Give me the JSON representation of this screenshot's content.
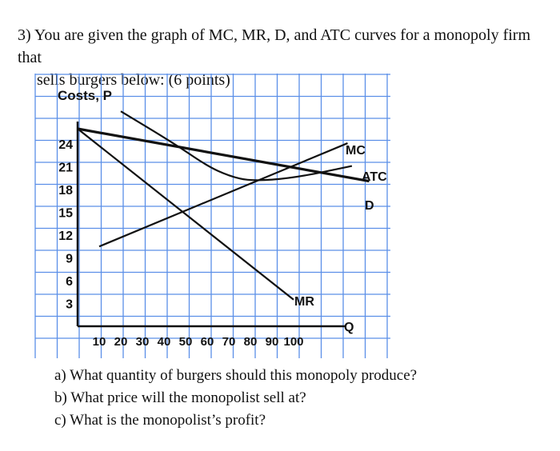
{
  "question": {
    "line1": "3) You are given the graph of MC, MR, D, and ATC curves for a monopoly firm that",
    "line2": "sells burgers below: (6 points)"
  },
  "subquestions": [
    "a) What quantity of burgers should this monopoly produce?",
    "b) What price will the monopolist sell at?",
    "c) What is the monopolist’s profit?"
  ],
  "chart_data": {
    "type": "line",
    "ylabel": "Costs, P",
    "xlabel": "Q",
    "x_ticks": [
      "10",
      "20",
      "30",
      "40",
      "50",
      "60",
      "70",
      "80",
      "90",
      "100"
    ],
    "y_ticks": [
      "3",
      "6",
      "9",
      "12",
      "15",
      "18",
      "21",
      "24"
    ],
    "xlim": [
      0,
      100
    ],
    "ylim": [
      0,
      24
    ],
    "grid": true,
    "colors": {
      "grid": "#5b8fe8",
      "curves": "#111111"
    },
    "series": [
      {
        "name": "D",
        "x": [
          0,
          135
        ],
        "y": [
          26,
          19.1
        ]
      },
      {
        "name": "MR",
        "x": [
          0,
          100
        ],
        "y": [
          26,
          3.5
        ]
      },
      {
        "name": "MC",
        "x": [
          10,
          125
        ],
        "y": [
          10.5,
          24.1
        ]
      },
      {
        "name": "ATC",
        "x": [
          20,
          45,
          60,
          70,
          80,
          100,
          127
        ],
        "y": [
          28.3,
          24,
          21.1,
          19.8,
          19.1,
          19.5,
          21.1
        ]
      }
    ]
  }
}
